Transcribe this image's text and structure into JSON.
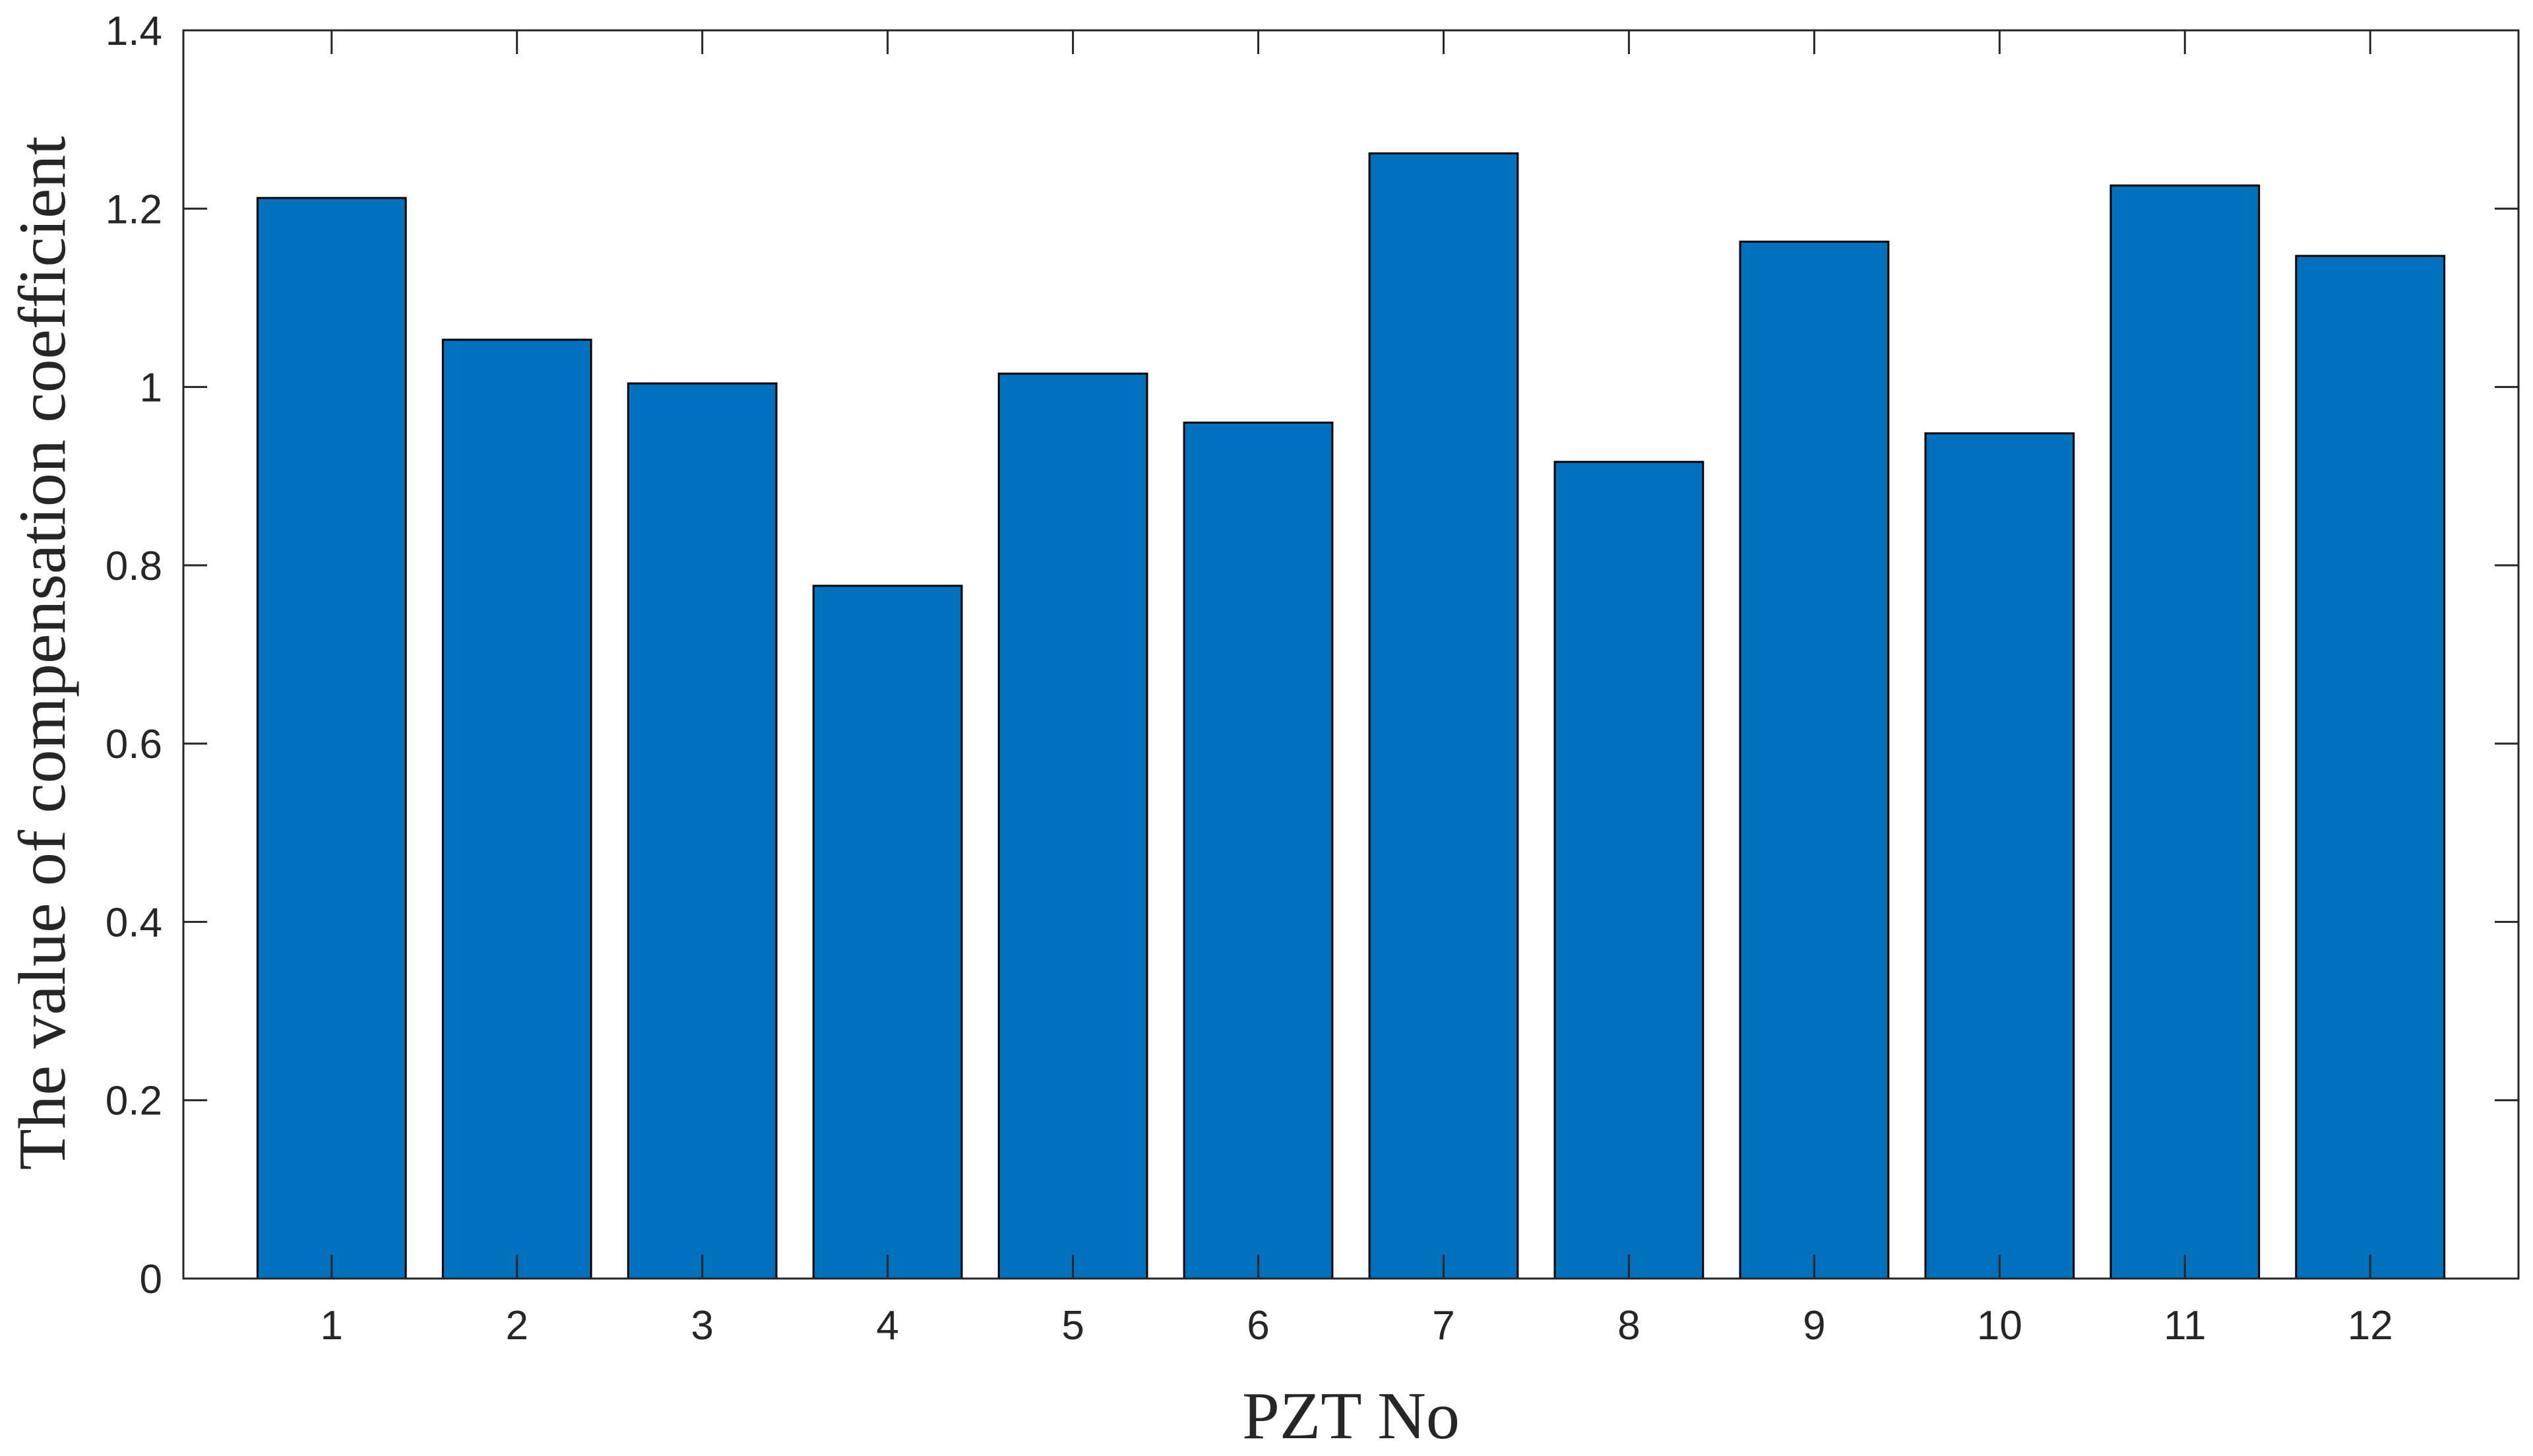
{
  "chart_data": {
    "type": "bar",
    "title": "",
    "xlabel": "PZT No",
    "ylabel": "The value of compensation coefficient",
    "categories": [
      "1",
      "2",
      "3",
      "4",
      "5",
      "6",
      "7",
      "8",
      "9",
      "10",
      "11",
      "12"
    ],
    "values": [
      1.212,
      1.053,
      1.004,
      0.777,
      1.015,
      0.96,
      1.262,
      0.916,
      1.163,
      0.948,
      1.226,
      1.147
    ],
    "ylim": [
      0,
      1.4
    ],
    "yticks": [
      0,
      0.2,
      0.4,
      0.6,
      0.8,
      1,
      1.2,
      1.4
    ],
    "ytick_labels": [
      "0",
      "0.2",
      "0.4",
      "0.6",
      "0.8",
      "1",
      "1.2",
      "1.4"
    ],
    "xlim": [
      0.2,
      12.8
    ],
    "grid": false,
    "legend": "none",
    "colors": {
      "bar": "#0072BD",
      "bar_edge": "#000000",
      "axes": "#262626",
      "background": "#ffffff"
    }
  }
}
